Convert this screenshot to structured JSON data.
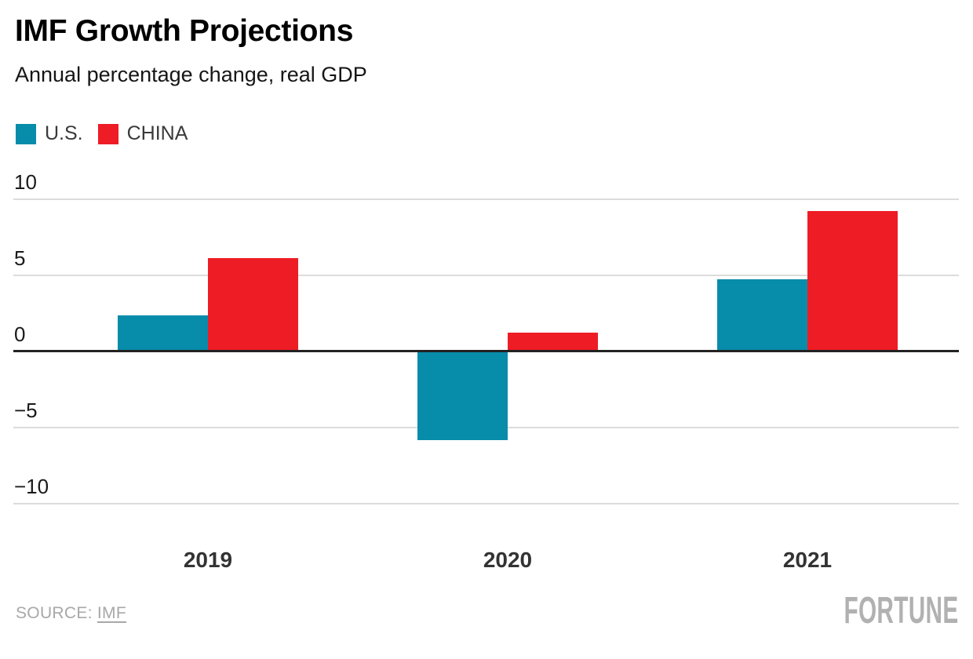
{
  "header": {
    "title": "IMF Growth Projections",
    "subtitle": "Annual percentage change, real GDP"
  },
  "chart_data": {
    "type": "bar",
    "title": "IMF Growth Projections",
    "subtitle": "Annual percentage change, real GDP",
    "categories": [
      "2019",
      "2020",
      "2021"
    ],
    "series": [
      {
        "name": "U.S.",
        "color": "#078caa",
        "values": [
          2.3,
          -5.9,
          4.7
        ]
      },
      {
        "name": "CHINA",
        "color": "#ee1c25",
        "values": [
          6.1,
          1.2,
          9.2
        ]
      }
    ],
    "xlabel": "",
    "ylabel": "",
    "ylim": [
      -10,
      10
    ],
    "yticks": [
      10,
      5,
      0,
      -5,
      -10
    ],
    "ytick_labels": [
      "10",
      "5",
      "0",
      "−5",
      "−10"
    ],
    "grid": true,
    "zero_line": true,
    "legend_position": "top-left"
  },
  "footer": {
    "source_label": "SOURCE:",
    "source_link": "IMF",
    "logo": "FORTUNE"
  },
  "colors": {
    "us": "#078caa",
    "china": "#ee1c25",
    "grid": "#dcdcdc",
    "zero_line": "#222222",
    "tick_text": "#1a1a1a",
    "category_text": "#333333",
    "footer_text": "#a8a8a8",
    "logo_text": "#b1b1b1"
  }
}
